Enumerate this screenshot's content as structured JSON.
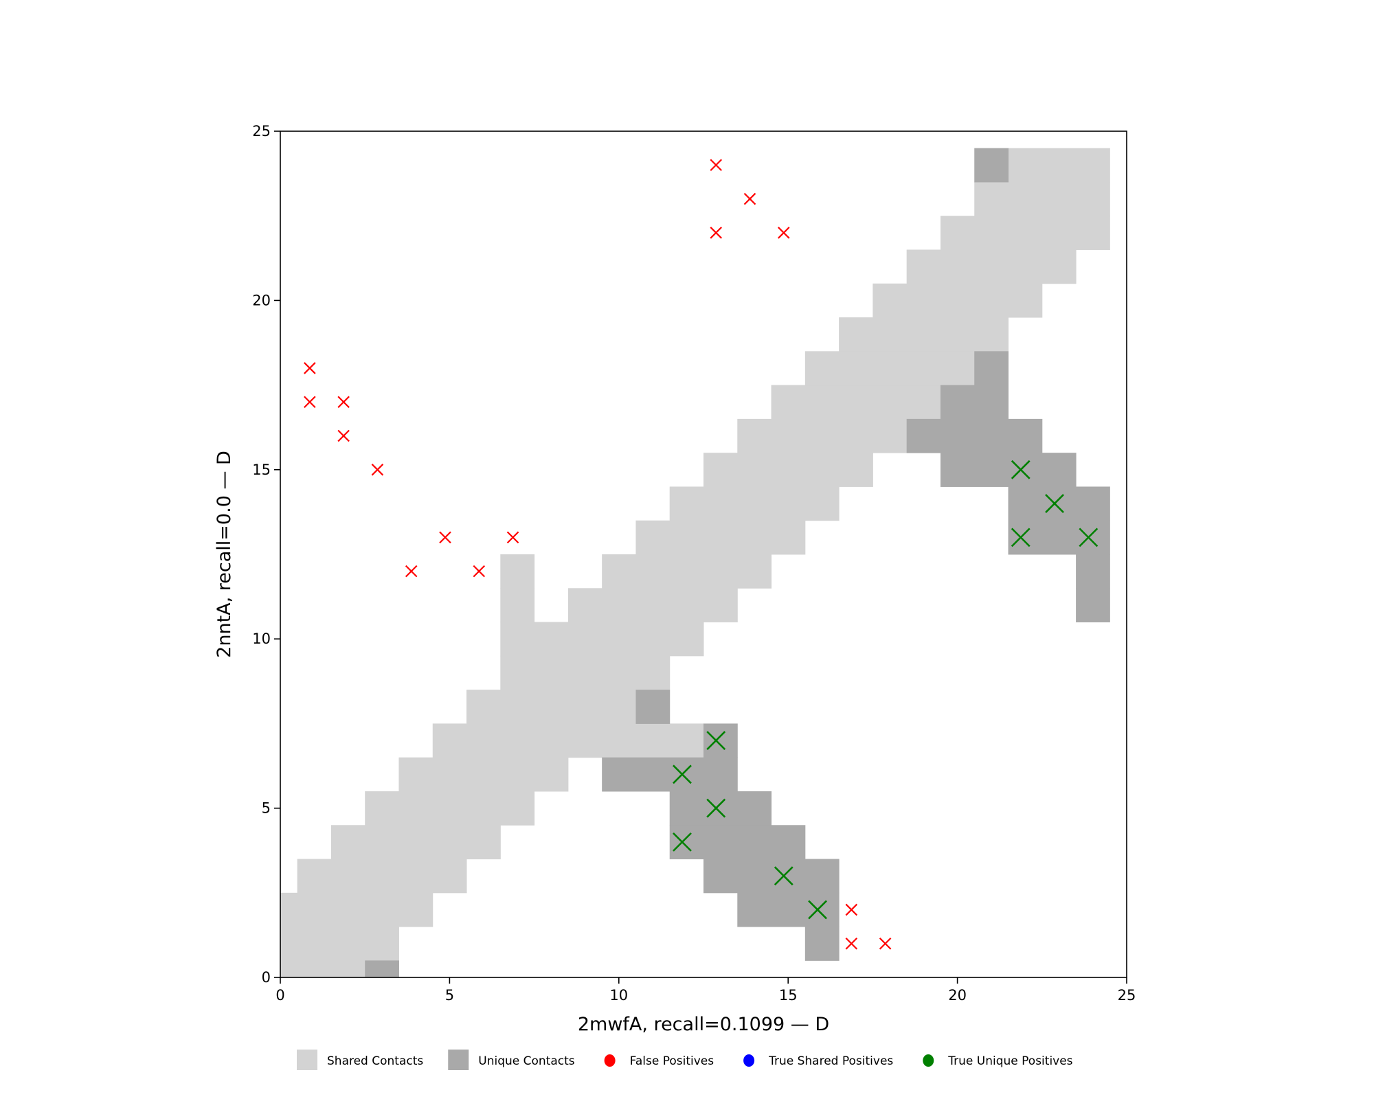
{
  "chart_data": {
    "type": "heatmap",
    "xlabel": "2mwfA, recall=0.1099 — D",
    "ylabel": "2nntA, recall=0.0 — D",
    "xlim": [
      0,
      25
    ],
    "ylim": [
      0,
      25
    ],
    "xticks": [
      "0",
      "5",
      "10",
      "15",
      "20",
      "25"
    ],
    "yticks": [
      "0",
      "5",
      "10",
      "15",
      "20",
      "25"
    ],
    "grid": false,
    "legend_position": "bottom",
    "colors": {
      "shared": "#d3d3d3",
      "unique": "#a9a9a9",
      "false_pos": "#ff0000",
      "true_shared": "#0000ff",
      "true_unique": "#008000"
    },
    "legend": [
      {
        "label": "Shared Contacts",
        "kind": "square",
        "color": "#d3d3d3"
      },
      {
        "label": "Unique Contacts",
        "kind": "square",
        "color": "#a9a9a9"
      },
      {
        "label": "False Positives",
        "kind": "dot",
        "color": "#ff0000"
      },
      {
        "label": "True Shared Positives",
        "kind": "dot",
        "color": "#0000ff"
      },
      {
        "label": "True Unique Positives",
        "kind": "dot",
        "color": "#008000"
      }
    ],
    "shared_cells_by_row": [
      [
        [
          0,
          2
        ]
      ],
      [
        [
          0,
          3
        ]
      ],
      [
        [
          0,
          4
        ]
      ],
      [
        [
          1,
          5
        ]
      ],
      [
        [
          2,
          6
        ]
      ],
      [
        [
          3,
          7
        ]
      ],
      [
        [
          4,
          8
        ]
      ],
      [
        [
          5,
          12
        ]
      ],
      [
        [
          6,
          10
        ]
      ],
      [
        [
          7,
          11
        ]
      ],
      [
        [
          7,
          12
        ]
      ],
      [
        [
          7,
          7
        ],
        [
          9,
          13
        ]
      ],
      [
        [
          7,
          7
        ],
        [
          10,
          14
        ]
      ],
      [
        [
          11,
          15
        ]
      ],
      [
        [
          12,
          16
        ]
      ],
      [
        [
          13,
          17
        ]
      ],
      [
        [
          14,
          18
        ]
      ],
      [
        [
          15,
          19
        ]
      ],
      [
        [
          16,
          20
        ]
      ],
      [
        [
          17,
          21
        ]
      ],
      [
        [
          18,
          22
        ]
      ],
      [
        [
          19,
          23
        ]
      ],
      [
        [
          20,
          24
        ]
      ],
      [
        [
          21,
          24
        ]
      ],
      [
        [
          22,
          24
        ]
      ]
    ],
    "unique_cells_by_row": [
      [
        [
          3,
          3
        ]
      ],
      [
        [
          16,
          16
        ]
      ],
      [
        [
          14,
          16
        ]
      ],
      [
        [
          13,
          16
        ]
      ],
      [
        [
          12,
          15
        ]
      ],
      [
        [
          12,
          14
        ]
      ],
      [
        [
          10,
          13
        ]
      ],
      [
        [
          13,
          13
        ]
      ],
      [
        [
          11,
          11
        ]
      ],
      [],
      [],
      [
        [
          24,
          24
        ]
      ],
      [
        [
          24,
          24
        ]
      ],
      [
        [
          22,
          24
        ]
      ],
      [
        [
          22,
          24
        ]
      ],
      [
        [
          20,
          23
        ]
      ],
      [
        [
          19,
          22
        ]
      ],
      [
        [
          20,
          21
        ]
      ],
      [
        [
          21,
          21
        ]
      ],
      [],
      [],
      [],
      [],
      [],
      [
        [
          21,
          21
        ]
      ]
    ],
    "false_positives": [
      [
        1,
        18
      ],
      [
        1,
        17
      ],
      [
        2,
        17
      ],
      [
        2,
        16
      ],
      [
        3,
        15
      ],
      [
        4,
        12
      ],
      [
        5,
        13
      ],
      [
        6,
        12
      ],
      [
        7,
        13
      ],
      [
        13,
        24
      ],
      [
        14,
        23
      ],
      [
        13,
        22
      ],
      [
        15,
        22
      ],
      [
        17,
        2
      ],
      [
        17,
        1
      ],
      [
        18,
        1
      ]
    ],
    "true_unique_positives": [
      [
        13,
        7
      ],
      [
        12,
        6
      ],
      [
        13,
        5
      ],
      [
        12,
        4
      ],
      [
        15,
        3
      ],
      [
        16,
        2
      ],
      [
        22,
        15
      ],
      [
        23,
        14
      ],
      [
        22,
        13
      ],
      [
        24,
        13
      ]
    ],
    "true_shared_positives": []
  }
}
